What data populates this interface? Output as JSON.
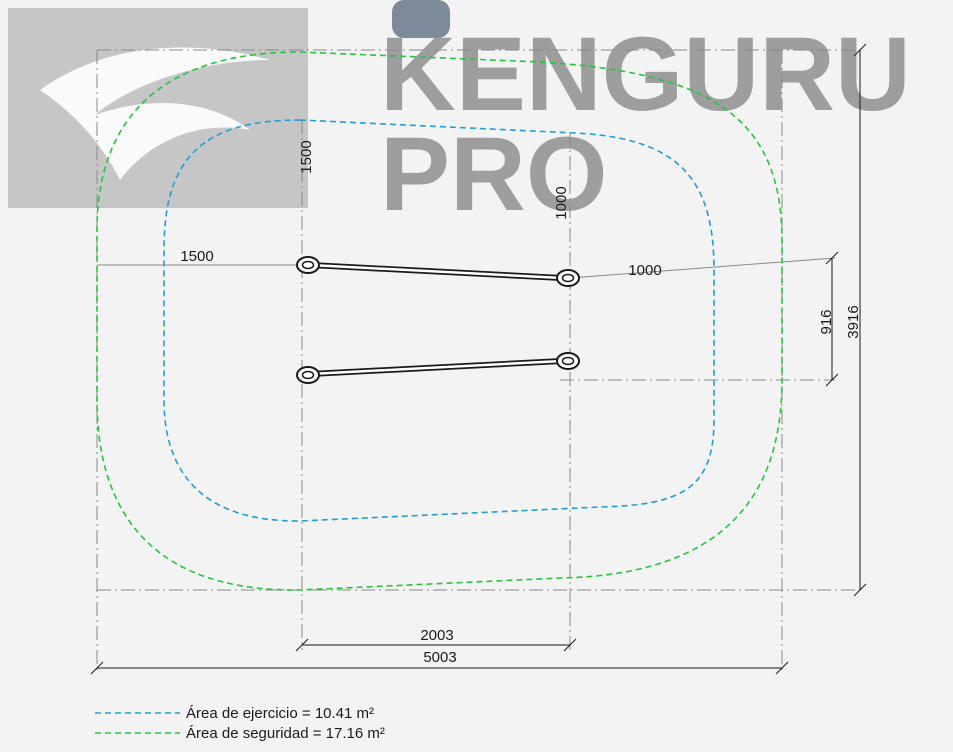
{
  "watermark": {
    "brand_line1": "KENGURU",
    "brand_line2": "PRO"
  },
  "colors": {
    "exercise_area": "#1e9fd6",
    "safety_area": "#21c73c",
    "lines": "#1a1a1a",
    "dimension_lines": "#8a8a8a",
    "watermark": "#9e9e9e"
  },
  "dimensions": {
    "total_width": "5003",
    "total_depth": "3916",
    "bar_span": "2003",
    "bar_spacing": "916",
    "left_clearance": "1500",
    "right_clearance": "1000",
    "top_left_clearance": "1500",
    "top_right_clearance": "1000"
  },
  "legend": {
    "exercise": "Área de ejercicio = 10.41 m²",
    "safety": "Área de seguridad = 17.16 m²"
  }
}
